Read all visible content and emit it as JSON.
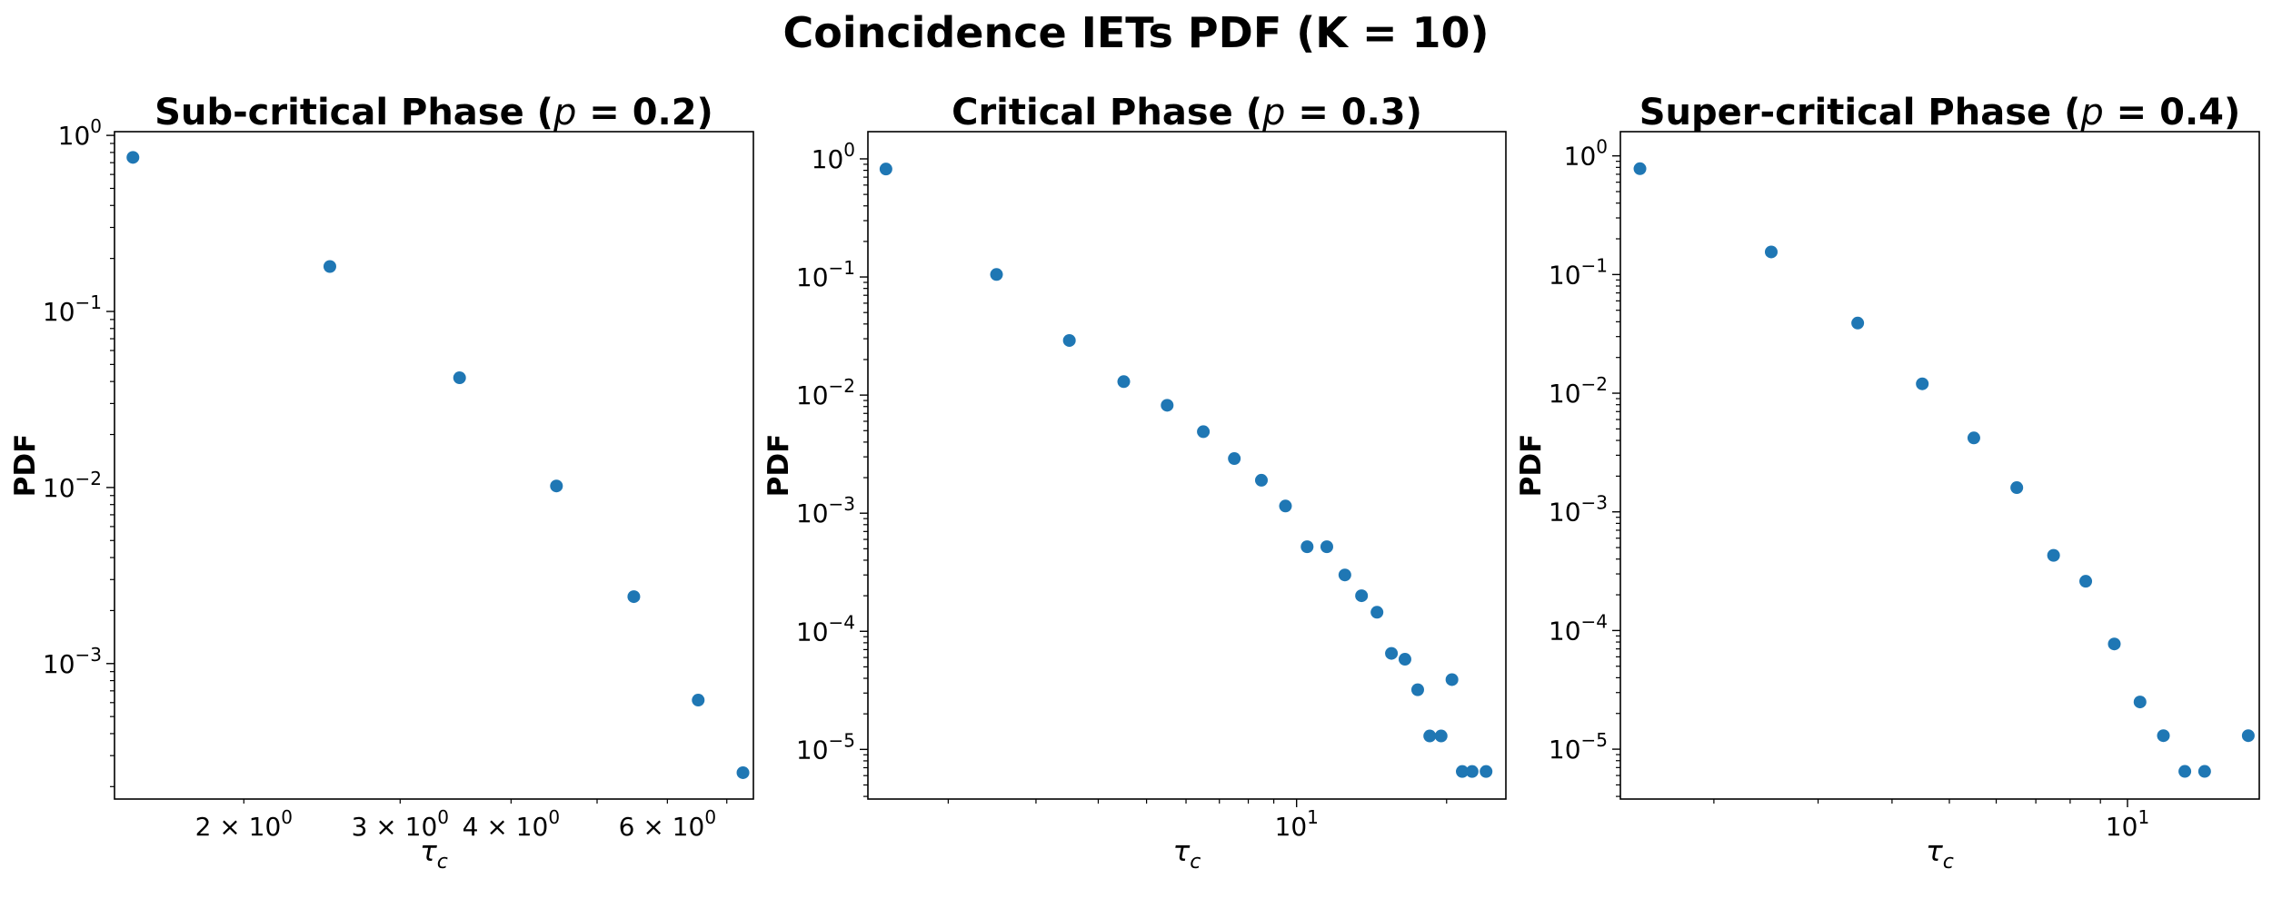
{
  "suptitle": "Coincidence IETs PDF (K = 10)",
  "marker_color": "#1f77b4",
  "chart_data": [
    {
      "type": "scatter",
      "title_prefix": "Sub-critical Phase (",
      "title_var": "p",
      "title_suffix": " = 0.2)",
      "xlabel": "τ",
      "xlabel_sub": "c",
      "ylabel": "PDF",
      "xscale": "log",
      "yscale": "log",
      "xlim": [
        1.43,
        7.5
      ],
      "ylim": [
        0.00017,
        1.05
      ],
      "x_major_ticks": [],
      "x_minor_ticks": [
        2,
        3,
        4,
        5,
        6,
        7
      ],
      "x_minor_labels": [
        {
          "value": 2,
          "base": "2 × 10",
          "exp": "0"
        },
        {
          "value": 3,
          "base": "3 × 10",
          "exp": "0"
        },
        {
          "value": 4,
          "base": "4 × 10",
          "exp": "0"
        },
        {
          "value": 6,
          "base": "6 × 10",
          "exp": "0"
        }
      ],
      "y_major_ticks": [
        {
          "value": 1,
          "base": "10",
          "exp": "0"
        },
        {
          "value": 0.1,
          "base": "10",
          "exp": "−1"
        },
        {
          "value": 0.01,
          "base": "10",
          "exp": "−2"
        },
        {
          "value": 0.001,
          "base": "10",
          "exp": "−3"
        }
      ],
      "x": [
        1.5,
        2.5,
        3.5,
        4.5,
        5.5,
        6.5,
        7.3
      ],
      "y": [
        0.75,
        0.18,
        0.042,
        0.0102,
        0.0024,
        0.00062,
        0.00024
      ]
    },
    {
      "type": "scatter",
      "title_prefix": "Critical Phase (",
      "title_var": "p",
      "title_suffix": " = 0.3)",
      "xlabel": "τ",
      "xlabel_sub": "c",
      "ylabel": "PDF",
      "xscale": "log",
      "yscale": "log",
      "xlim": [
        1.38,
        26.3
      ],
      "ylim": [
        3.8e-06,
        1.7
      ],
      "x_major_ticks": [
        {
          "value": 10,
          "base": "10",
          "exp": "1"
        }
      ],
      "x_minor_ticks": [
        2,
        3,
        4,
        5,
        6,
        7,
        8,
        9,
        20
      ],
      "x_minor_labels": [],
      "y_major_ticks": [
        {
          "value": 1,
          "base": "10",
          "exp": "0"
        },
        {
          "value": 0.1,
          "base": "10",
          "exp": "−1"
        },
        {
          "value": 0.01,
          "base": "10",
          "exp": "−2"
        },
        {
          "value": 0.001,
          "base": "10",
          "exp": "−3"
        },
        {
          "value": 0.0001,
          "base": "10",
          "exp": "−4"
        },
        {
          "value": 1e-05,
          "base": "10",
          "exp": "−5"
        }
      ],
      "x": [
        1.5,
        2.5,
        3.5,
        4.5,
        5.5,
        6.5,
        7.5,
        8.5,
        9.5,
        10.5,
        11.5,
        12.5,
        13.5,
        14.5,
        15.5,
        16.5,
        17.5,
        18.5,
        19.5,
        20.5,
        21.5,
        22.5,
        24.0
      ],
      "y": [
        0.82,
        0.105,
        0.029,
        0.013,
        0.0082,
        0.0049,
        0.0029,
        0.0019,
        0.00115,
        0.00052,
        0.00052,
        0.0003,
        0.0002,
        0.000145,
        6.5e-05,
        5.8e-05,
        3.2e-05,
        1.3e-05,
        1.3e-05,
        3.9e-05,
        6.5e-06,
        6.5e-06,
        6.5e-06
      ]
    },
    {
      "type": "scatter",
      "title_prefix": "Super-critical Phase (",
      "title_var": "p",
      "title_suffix": " = 0.4)",
      "xlabel": "τ",
      "xlabel_sub": "c",
      "ylabel": "PDF",
      "xscale": "log",
      "yscale": "log",
      "xlim": [
        1.39,
        16.7
      ],
      "ylim": [
        3.8e-06,
        1.6
      ],
      "x_major_ticks": [
        {
          "value": 10,
          "base": "10",
          "exp": "1"
        }
      ],
      "x_minor_ticks": [
        2,
        3,
        4,
        5,
        6,
        7,
        8,
        9
      ],
      "x_minor_labels": [],
      "y_major_ticks": [
        {
          "value": 1,
          "base": "10",
          "exp": "0"
        },
        {
          "value": 0.1,
          "base": "10",
          "exp": "−1"
        },
        {
          "value": 0.01,
          "base": "10",
          "exp": "−2"
        },
        {
          "value": 0.001,
          "base": "10",
          "exp": "−3"
        },
        {
          "value": 0.0001,
          "base": "10",
          "exp": "−4"
        },
        {
          "value": 1e-05,
          "base": "10",
          "exp": "−5"
        }
      ],
      "x": [
        1.5,
        2.5,
        3.5,
        4.5,
        5.5,
        6.5,
        7.5,
        8.5,
        9.5,
        10.5,
        11.5,
        12.5,
        13.5,
        16.0
      ],
      "y": [
        0.78,
        0.155,
        0.039,
        0.012,
        0.0042,
        0.0016,
        0.00043,
        0.00026,
        7.7e-05,
        2.5e-05,
        1.3e-05,
        6.5e-06,
        6.5e-06,
        1.3e-05
      ]
    }
  ]
}
